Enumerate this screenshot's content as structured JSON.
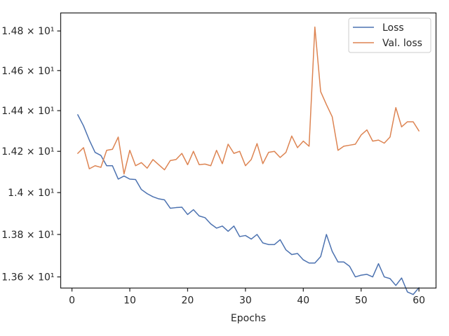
{
  "chart_data": {
    "type": "line",
    "title": "",
    "xlabel": "Epochs",
    "ylabel": "",
    "xlim": [
      -1.95,
      62.95
    ],
    "ylim": [
      13.548,
      14.892
    ],
    "xticks": [
      0,
      10,
      20,
      30,
      40,
      50,
      60
    ],
    "xtick_labels": [
      "0",
      "10",
      "20",
      "30",
      "40",
      "50",
      "60"
    ],
    "yticks": [
      13.6,
      13.8,
      14.0,
      14.2,
      14.4,
      14.6,
      14.8
    ],
    "ytick_labels": [
      "1.36 × 10¹",
      "1.38 × 10¹",
      "1.4 × 10¹",
      "1.42 × 10¹",
      "1.44 × 10¹",
      "1.46 × 10¹",
      "1.48 × 10¹"
    ],
    "y_scale": "log",
    "grid": false,
    "legend_position": "top-right",
    "x": [
      1,
      2,
      3,
      4,
      5,
      6,
      7,
      8,
      9,
      10,
      11,
      12,
      13,
      14,
      15,
      16,
      17,
      18,
      19,
      20,
      21,
      22,
      23,
      24,
      25,
      26,
      27,
      28,
      29,
      30,
      31,
      32,
      33,
      34,
      35,
      36,
      37,
      38,
      39,
      40,
      41,
      42,
      43,
      44,
      45,
      46,
      47,
      48,
      49,
      50,
      51,
      52,
      53,
      54,
      55,
      56,
      57,
      58,
      59,
      60
    ],
    "series": [
      {
        "name": "Loss",
        "color": "#4c72b0",
        "values": [
          14.38,
          14.325,
          14.255,
          14.195,
          14.18,
          14.13,
          14.13,
          14.065,
          14.08,
          14.065,
          14.063,
          14.015,
          13.995,
          13.98,
          13.97,
          13.965,
          13.925,
          13.928,
          13.93,
          13.895,
          13.918,
          13.888,
          13.88,
          13.85,
          13.83,
          13.84,
          13.815,
          13.84,
          13.79,
          13.795,
          13.778,
          13.8,
          13.76,
          13.752,
          13.752,
          13.775,
          13.727,
          13.705,
          13.71,
          13.68,
          13.665,
          13.665,
          13.695,
          13.8,
          13.72,
          13.67,
          13.67,
          13.65,
          13.6,
          13.608,
          13.612,
          13.6,
          13.662,
          13.6,
          13.592,
          13.56,
          13.595,
          13.53,
          13.518,
          13.55
        ]
      },
      {
        "name": "Val. loss",
        "color": "#dd8452",
        "values": [
          14.19,
          14.218,
          14.115,
          14.13,
          14.122,
          14.205,
          14.21,
          14.27,
          14.09,
          14.205,
          14.13,
          14.145,
          14.118,
          14.16,
          14.135,
          14.11,
          14.155,
          14.16,
          14.19,
          14.135,
          14.2,
          14.135,
          14.138,
          14.13,
          14.205,
          14.14,
          14.235,
          14.19,
          14.2,
          14.13,
          14.16,
          14.238,
          14.14,
          14.195,
          14.2,
          14.17,
          14.195,
          14.275,
          14.218,
          14.25,
          14.225,
          14.82,
          14.495,
          14.43,
          14.37,
          14.205,
          14.225,
          14.23,
          14.235,
          14.28,
          14.305,
          14.25,
          14.255,
          14.24,
          14.27,
          14.415,
          14.32,
          14.345,
          14.345,
          14.3
        ]
      }
    ]
  }
}
